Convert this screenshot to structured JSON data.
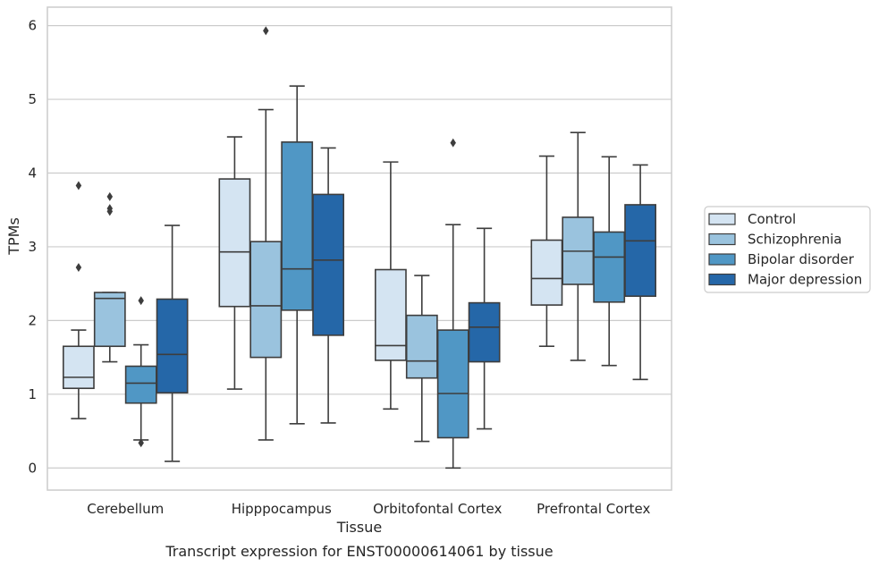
{
  "caption": "Transcript expression for ENST00000614061 by tissue",
  "chart_data": {
    "type": "box",
    "xlabel": "Tissue",
    "ylabel": "TPMs",
    "ylim": [
      -0.3,
      6.25
    ],
    "yticks": [
      0,
      1,
      2,
      3,
      4,
      5,
      6
    ],
    "grid": true,
    "legend_position": "right",
    "categories": [
      "Cerebellum",
      "Hipppocampus",
      "Orbitofontal Cortex",
      "Prefrontal Cortex"
    ],
    "series": [
      {
        "name": "Control",
        "color": "#d4e4f2",
        "boxes": [
          {
            "whislo": 0.67,
            "q1": 1.08,
            "med": 1.23,
            "q3": 1.65,
            "whishi": 1.87,
            "fliers": [
              3.83,
              2.72
            ]
          },
          {
            "whislo": 1.07,
            "q1": 2.19,
            "med": 2.93,
            "q3": 3.92,
            "whishi": 4.49,
            "fliers": []
          },
          {
            "whislo": 0.8,
            "q1": 1.46,
            "med": 1.66,
            "q3": 2.69,
            "whishi": 4.15,
            "fliers": []
          },
          {
            "whislo": 1.65,
            "q1": 2.21,
            "med": 2.57,
            "q3": 3.09,
            "whishi": 4.23,
            "fliers": []
          }
        ]
      },
      {
        "name": "Schizophrenia",
        "color": "#9ac3de",
        "boxes": [
          {
            "whislo": 1.44,
            "q1": 1.65,
            "med": 2.3,
            "q3": 2.38,
            "whishi": 2.38,
            "fliers": [
              3.68,
              3.52,
              3.48
            ]
          },
          {
            "whislo": 0.38,
            "q1": 1.5,
            "med": 2.2,
            "q3": 3.07,
            "whishi": 4.86,
            "fliers": [
              5.93
            ]
          },
          {
            "whislo": 0.36,
            "q1": 1.22,
            "med": 1.45,
            "q3": 2.07,
            "whishi": 2.61,
            "fliers": []
          },
          {
            "whislo": 1.46,
            "q1": 2.49,
            "med": 2.94,
            "q3": 3.4,
            "whishi": 4.55,
            "fliers": []
          }
        ]
      },
      {
        "name": "Bipolar disorder",
        "color": "#5097c5",
        "boxes": [
          {
            "whislo": 0.38,
            "q1": 0.88,
            "med": 1.15,
            "q3": 1.38,
            "whishi": 1.67,
            "fliers": [
              2.27,
              0.34
            ]
          },
          {
            "whislo": 0.6,
            "q1": 2.14,
            "med": 2.7,
            "q3": 4.42,
            "whishi": 5.18,
            "fliers": []
          },
          {
            "whislo": 0.0,
            "q1": 0.41,
            "med": 1.01,
            "q3": 1.87,
            "whishi": 3.3,
            "fliers": [
              4.41
            ]
          },
          {
            "whislo": 1.39,
            "q1": 2.25,
            "med": 2.86,
            "q3": 3.2,
            "whishi": 4.22,
            "fliers": []
          }
        ]
      },
      {
        "name": "Major depression",
        "color": "#2567a8",
        "boxes": [
          {
            "whislo": 0.09,
            "q1": 1.02,
            "med": 1.54,
            "q3": 2.29,
            "whishi": 3.29,
            "fliers": []
          },
          {
            "whislo": 0.61,
            "q1": 1.8,
            "med": 2.82,
            "q3": 3.71,
            "whishi": 4.34,
            "fliers": []
          },
          {
            "whislo": 0.53,
            "q1": 1.44,
            "med": 1.91,
            "q3": 2.24,
            "whishi": 3.25,
            "fliers": []
          },
          {
            "whislo": 1.2,
            "q1": 2.33,
            "med": 3.08,
            "q3": 3.57,
            "whishi": 4.11,
            "fliers": []
          }
        ]
      }
    ]
  }
}
